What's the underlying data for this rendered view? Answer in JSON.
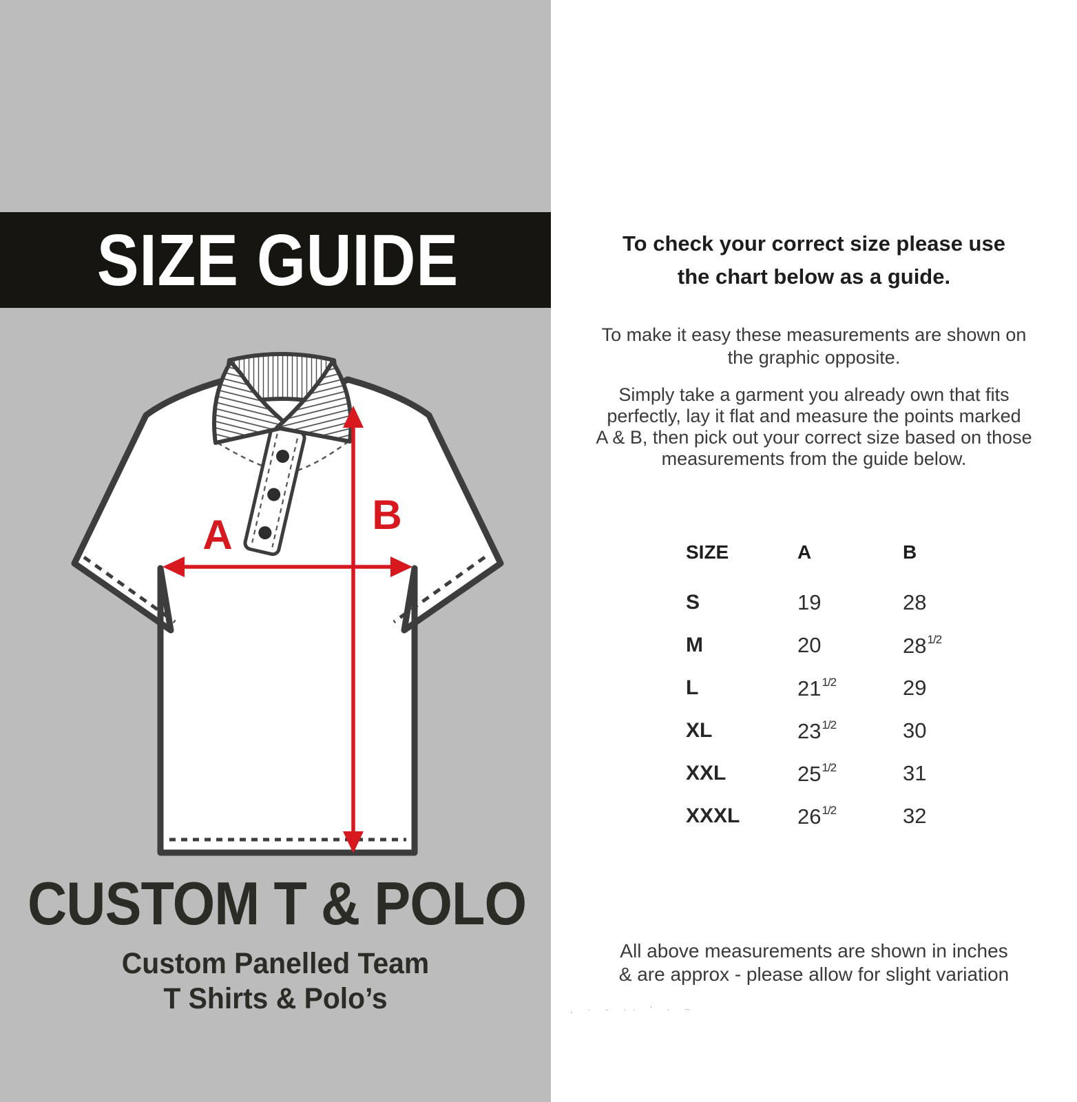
{
  "colors": {
    "panel_bg": "#bcbcbc",
    "banner_bg": "#16150f",
    "accent_red": "#d7191f",
    "outline": "#3d3d3d",
    "ink": "#262626"
  },
  "left_panel": {
    "banner_title": "SIZE GUIDE",
    "brand_title": "CUSTOM T & POLO",
    "brand_sub_lines": [
      "Custom Panelled Team",
      "T Shirts & Polo’s"
    ],
    "diagram": {
      "label_a": "A",
      "label_b": "B"
    }
  },
  "right_panel": {
    "heading_lines": [
      "To check your correct size please use",
      "the chart below as a guide."
    ],
    "intro_lines": [
      "To make it easy these measurements are shown on",
      "the graphic opposite."
    ],
    "instruction_lines": [
      "Simply take a garment you already own that fits",
      "perfectly, lay it flat and measure the points marked",
      "A & B, then pick out your correct size based on those",
      "measurements from the guide below."
    ],
    "footnote_lines": [
      "All above measurements are shown in inches",
      "& are approx - please allow for slight variation"
    ],
    "faded_marks": ", ·   -  ··   '         ·                                  ~"
  },
  "chart_data": {
    "type": "table",
    "units": "inches",
    "columns": [
      "SIZE",
      "A",
      "B"
    ],
    "rows": [
      {
        "size": "S",
        "a": {
          "v": "19"
        },
        "b": {
          "v": "28"
        }
      },
      {
        "size": "M",
        "a": {
          "v": "20"
        },
        "b": {
          "v": "28",
          "f": "1/2"
        }
      },
      {
        "size": "L",
        "a": {
          "v": "21",
          "f": "1/2"
        },
        "b": {
          "v": "29"
        }
      },
      {
        "size": "XL",
        "a": {
          "v": "23",
          "f": "1/2"
        },
        "b": {
          "v": "30"
        }
      },
      {
        "size": "XXL",
        "a": {
          "v": "25",
          "f": "1/2"
        },
        "b": {
          "v": "31"
        }
      },
      {
        "size": "XXXL",
        "a": {
          "v": "26",
          "f": "1/2"
        },
        "b": {
          "v": "32"
        }
      }
    ]
  }
}
